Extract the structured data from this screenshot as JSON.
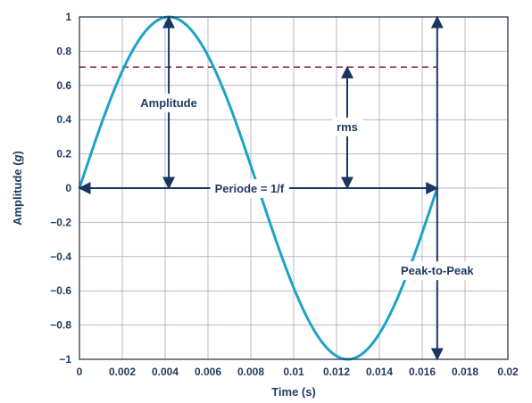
{
  "chart_data": {
    "type": "line",
    "xlabel": "Time (s)",
    "ylabel_prefix": "Amplitude (",
    "ylabel_unit": "g",
    "ylabel_suffix": ")",
    "xlim": [
      0,
      0.02
    ],
    "ylim": [
      -1,
      1
    ],
    "grid": true,
    "x_ticks": [
      0,
      0.002,
      0.004,
      0.006,
      0.008,
      0.01,
      0.012,
      0.014,
      0.016,
      0.018,
      0.02
    ],
    "x_tick_labels": [
      "0",
      "0.002",
      "0.004",
      "0.006",
      "0.008",
      "0.01",
      "0.012",
      "0.014",
      "0.016",
      "0.018",
      "0.02"
    ],
    "y_ticks": [
      1,
      0.8,
      0.6,
      0.4,
      0.2,
      0,
      -0.2,
      -0.4,
      -0.6,
      -0.8,
      -1
    ],
    "y_tick_labels": [
      "1",
      "0.8",
      "0.6",
      "0.4",
      "0.2",
      "0",
      "−0.2",
      "−0.4",
      "−0.6",
      "−0.8",
      "−1"
    ],
    "series": [
      {
        "function": "sine",
        "amplitude": 1,
        "period": 0.0167,
        "x_start": 0,
        "x_end": 0.0167,
        "color": "#1ea3c8"
      }
    ],
    "rms_line": {
      "y": 0.707,
      "x_start": 0,
      "x_end": 0.0167,
      "color": "#8b1a2b"
    },
    "annotations": {
      "amplitude": {
        "label": "Amplitude",
        "x": 0.00417,
        "y_from": 0,
        "y_to": 1
      },
      "rms": {
        "label": "rms",
        "x": 0.0125,
        "y_from": 0,
        "y_to": 0.707
      },
      "period": {
        "label": "Periode = 1/f",
        "x_from": 0,
        "x_to": 0.0167,
        "y": 0
      },
      "peak_to_peak": {
        "label": "Peak-to-Peak",
        "x": 0.0167,
        "y_from": -1,
        "y_to": 1
      }
    },
    "colors": {
      "text": "#1f3a5f",
      "arrow": "#1a3560",
      "grid": "#b8b8c8"
    }
  }
}
